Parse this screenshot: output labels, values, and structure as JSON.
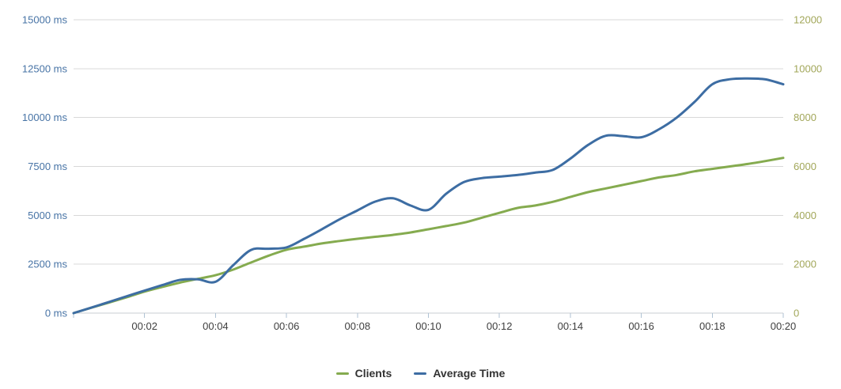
{
  "chart_data": {
    "type": "line",
    "title": "",
    "background": "#FFFFFF",
    "grid": "horizontal",
    "gridline_color": "#D8D8D8",
    "legend_position": "bottom-center",
    "x_axis": {
      "tick_labels": [
        "00:02",
        "00:04",
        "00:06",
        "00:08",
        "00:10",
        "00:12",
        "00:14",
        "00:16",
        "00:18",
        "00:20"
      ],
      "range_minutes": [
        0,
        20
      ],
      "tick_interval_minutes": 2,
      "label_color": "#3E3E3E",
      "tick_color": "#AFC2D3",
      "line_color": "#C9CED3"
    },
    "left_axis": {
      "unit": "ms",
      "labels": [
        "0 ms",
        "2500 ms",
        "5000 ms",
        "7500 ms",
        "10000 ms",
        "12500 ms",
        "15000 ms"
      ],
      "min": 0,
      "max": 15000,
      "step": 2500,
      "label_color": "#4874A6"
    },
    "right_axis": {
      "labels": [
        "0",
        "2000",
        "4000",
        "6000",
        "8000",
        "10000",
        "12000"
      ],
      "min": 0,
      "max": 12000,
      "step": 2000,
      "label_color": "#A2A75A"
    },
    "series": [
      {
        "name": "Clients",
        "axis": "right",
        "color": "#85AB4F",
        "x_minutes": [
          0,
          0.5,
          1,
          1.5,
          2,
          2.5,
          3,
          3.5,
          4,
          4.5,
          5,
          5.5,
          6,
          6.5,
          7,
          7.5,
          8,
          8.5,
          9,
          9.5,
          10,
          10.5,
          11,
          11.5,
          12,
          12.5,
          13,
          13.5,
          14,
          14.5,
          15,
          15.5,
          16,
          16.5,
          17,
          17.5,
          18,
          18.5,
          19,
          19.5,
          20
        ],
        "values": [
          0,
          220,
          430,
          650,
          880,
          1070,
          1250,
          1400,
          1550,
          1780,
          2070,
          2350,
          2590,
          2720,
          2850,
          2950,
          3040,
          3120,
          3200,
          3300,
          3430,
          3560,
          3700,
          3900,
          4100,
          4300,
          4400,
          4550,
          4750,
          4950,
          5100,
          5250,
          5400,
          5550,
          5650,
          5800,
          5900,
          6000,
          6100,
          6220,
          6350
        ]
      },
      {
        "name": "Average Time",
        "axis": "left",
        "color": "#3D6DA3",
        "x_minutes": [
          0,
          0.5,
          1,
          1.5,
          2,
          2.5,
          3,
          3.5,
          4,
          4.5,
          5,
          5.5,
          6,
          6.5,
          7,
          7.5,
          8,
          8.5,
          9,
          9.5,
          10,
          10.5,
          11,
          11.5,
          12,
          12.5,
          13,
          13.5,
          14,
          14.5,
          15,
          15.5,
          16,
          16.5,
          17,
          17.5,
          18,
          18.5,
          19,
          19.5,
          20
        ],
        "values": [
          0,
          280,
          570,
          860,
          1150,
          1430,
          1700,
          1730,
          1600,
          2450,
          3230,
          3290,
          3360,
          3800,
          4290,
          4800,
          5250,
          5700,
          5870,
          5500,
          5280,
          6100,
          6700,
          6900,
          6980,
          7060,
          7180,
          7320,
          7900,
          8600,
          9070,
          9050,
          8990,
          9400,
          10000,
          10800,
          11700,
          11960,
          12000,
          11950,
          11700
        ]
      }
    ]
  },
  "legend": {
    "items": [
      {
        "label": "Clients",
        "color": "#85AB4F"
      },
      {
        "label": "Average Time",
        "color": "#3D6DA3"
      }
    ]
  }
}
